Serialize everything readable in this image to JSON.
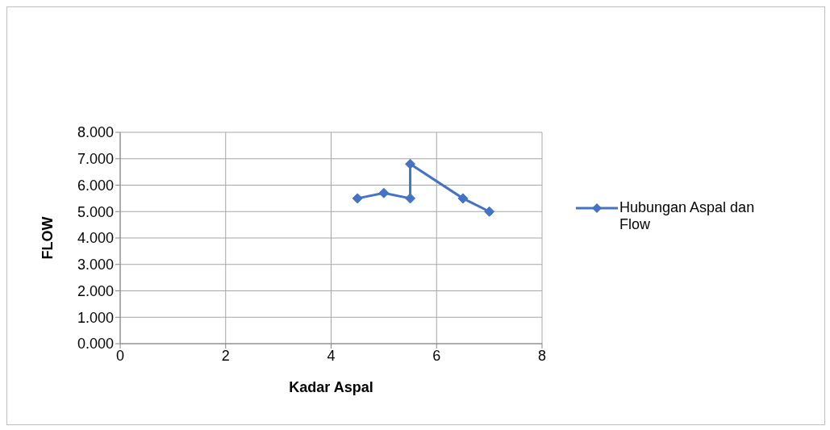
{
  "chart_data": {
    "type": "line",
    "xlabel": "Kadar Aspal",
    "ylabel": "FLOW",
    "x": [
      4.5,
      5,
      5.5,
      5.5,
      6.5,
      7
    ],
    "series": [
      {
        "name": "Hubungan Aspal dan Flow",
        "color": "#4472c4",
        "values": [
          5.5,
          5.7,
          5.5,
          6.8,
          5.5,
          5.0
        ]
      }
    ],
    "xlim": [
      0,
      8
    ],
    "xticks": [
      0,
      2,
      4,
      6,
      8
    ],
    "ylim": [
      0,
      8
    ],
    "yticks": [
      {
        "value": 0,
        "label": "0.000"
      },
      {
        "value": 1,
        "label": "1.000"
      },
      {
        "value": 2,
        "label": "2.000"
      },
      {
        "value": 3,
        "label": "3.000"
      },
      {
        "value": 4,
        "label": "4.000"
      },
      {
        "value": 5,
        "label": "5.000"
      },
      {
        "value": 6,
        "label": "6.000"
      },
      {
        "value": 7,
        "label": "7.000"
      },
      {
        "value": 8,
        "label": "8.000"
      }
    ],
    "grid": true,
    "legend": "right",
    "marker": "diamond",
    "line_style": "solid"
  }
}
